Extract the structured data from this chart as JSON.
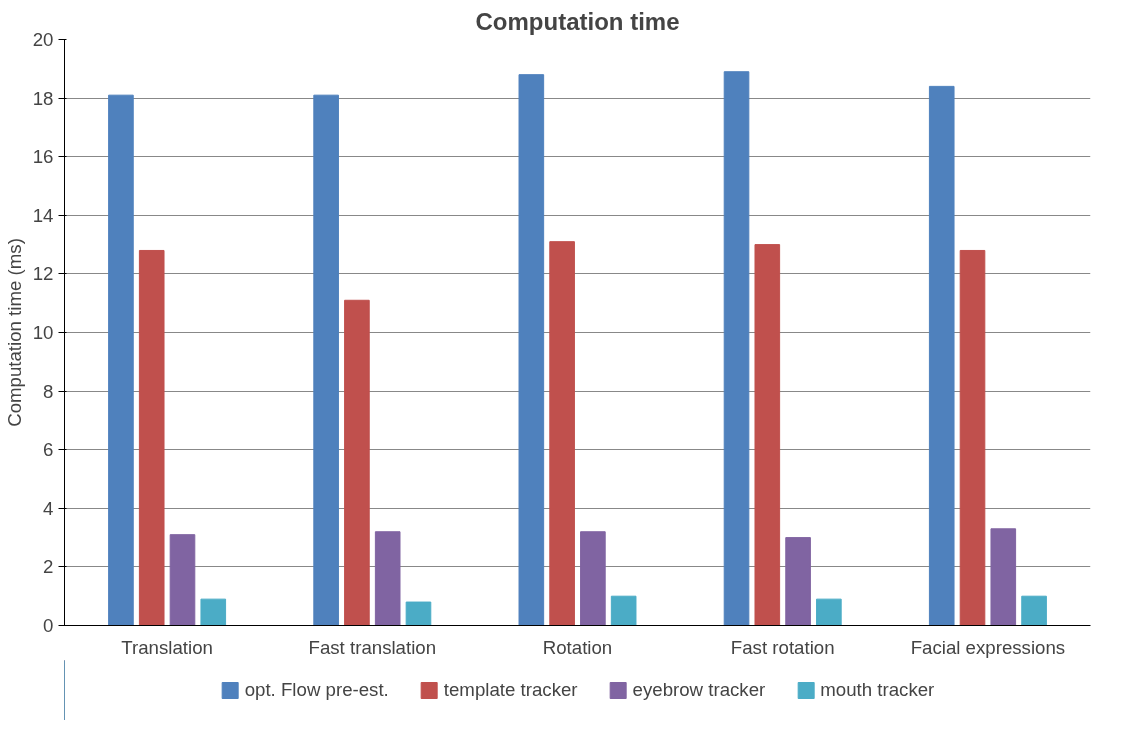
{
  "chart_data": {
    "type": "bar",
    "title": "Computation time",
    "ylabel": "Computation time (ms)",
    "categories": [
      "Translation",
      "Fast translation",
      "Rotation",
      "Fast rotation",
      "Facial expressions"
    ],
    "series": [
      {
        "name": "opt. Flow pre-est.",
        "color": "#4f81bd",
        "values": [
          18.1,
          18.1,
          18.8,
          18.9,
          18.4
        ]
      },
      {
        "name": "template tracker",
        "color": "#c0504d",
        "values": [
          12.8,
          11.1,
          13.1,
          13.0,
          12.8
        ]
      },
      {
        "name": "eyebrow tracker",
        "color": "#8064a2",
        "values": [
          3.1,
          3.2,
          3.2,
          3.0,
          3.3
        ]
      },
      {
        "name": "mouth tracker",
        "color": "#4bacc6",
        "values": [
          0.9,
          0.8,
          1.0,
          0.9,
          1.0
        ]
      }
    ],
    "ylim": [
      0,
      20
    ],
    "yticks": [
      0,
      2,
      4,
      6,
      8,
      10,
      12,
      14,
      16,
      18,
      20
    ],
    "grid": "y",
    "legend": "bottom"
  }
}
